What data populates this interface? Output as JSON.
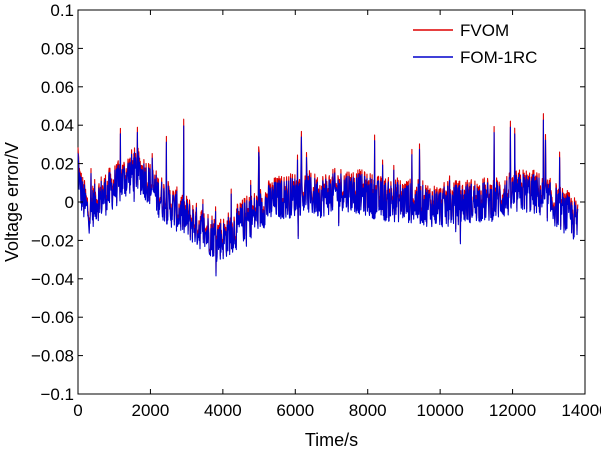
{
  "chart_data": {
    "type": "line",
    "title": "",
    "xlabel": "Time/s",
    "ylabel": "Voltage error/V",
    "xlim": [
      0,
      14000
    ],
    "ylim": [
      -0.1,
      0.1
    ],
    "xticks": [
      0,
      2000,
      4000,
      6000,
      8000,
      10000,
      12000,
      14000
    ],
    "xtick_labels": [
      "0",
      "2000",
      "4000",
      "6000",
      "8000",
      "10000",
      "12000",
      "14000"
    ],
    "yticks": [
      0.1,
      0.08,
      0.06,
      0.04,
      0.02,
      0,
      -0.02,
      -0.04,
      -0.06,
      -0.08,
      -0.1
    ],
    "ytick_labels": [
      "0.1",
      "0.08",
      "0.06",
      "0.04",
      "0.02",
      "0",
      "−0.02",
      "−0.04",
      "−0.06",
      "−0.08",
      "−0.1"
    ],
    "grid": false,
    "legend": "top-right",
    "series": [
      {
        "name": "FVOM",
        "color": "#dd0000",
        "x": [
          0,
          50,
          150,
          300,
          500,
          800,
          1000,
          1200,
          1400,
          1600,
          1800,
          2000,
          2200,
          2500,
          2800,
          3000,
          3200,
          3500,
          3800,
          4000,
          4200,
          4400,
          4600,
          4800,
          5000,
          5200,
          5500,
          5800,
          6000,
          6300,
          6600,
          7000,
          7300,
          7600,
          8000,
          8300,
          8600,
          9000,
          9300,
          9600,
          10000,
          10300,
          10600,
          11000,
          11300,
          11600,
          12000,
          12300,
          12600,
          13000,
          13300,
          13600,
          13800
        ],
        "y": [
          0.025,
          0.01,
          0.002,
          -0.004,
          0.002,
          0.006,
          0.009,
          0.012,
          0.016,
          0.018,
          0.015,
          0.01,
          0.005,
          0.0,
          -0.004,
          -0.007,
          -0.01,
          -0.014,
          -0.017,
          -0.018,
          -0.015,
          -0.012,
          -0.008,
          -0.006,
          -0.003,
          0.0,
          0.003,
          0.004,
          0.005,
          0.006,
          0.004,
          0.006,
          0.008,
          0.007,
          0.005,
          0.003,
          0.002,
          0.002,
          0.001,
          0.0,
          -0.001,
          0.0,
          0.001,
          0.002,
          0.002,
          0.003,
          0.005,
          0.007,
          0.006,
          0.002,
          -0.002,
          -0.006,
          -0.01
        ]
      },
      {
        "name": "FOM-1RC",
        "color": "#0000cc",
        "x": [
          0,
          50,
          150,
          300,
          500,
          800,
          1000,
          1200,
          1400,
          1600,
          1800,
          2000,
          2200,
          2500,
          2800,
          3000,
          3200,
          3500,
          3800,
          4000,
          4200,
          4400,
          4600,
          4800,
          5000,
          5200,
          5500,
          5800,
          6000,
          6300,
          6600,
          7000,
          7300,
          7600,
          8000,
          8300,
          8600,
          9000,
          9300,
          9600,
          10000,
          10300,
          10600,
          11000,
          11300,
          11600,
          12000,
          12300,
          12600,
          13000,
          13300,
          13600,
          13800
        ],
        "y": [
          0.022,
          0.008,
          0.0,
          -0.006,
          0.0,
          0.004,
          0.007,
          0.01,
          0.014,
          0.016,
          0.013,
          0.008,
          0.003,
          -0.002,
          -0.006,
          -0.009,
          -0.012,
          -0.016,
          -0.019,
          -0.02,
          -0.017,
          -0.014,
          -0.01,
          -0.008,
          -0.005,
          -0.002,
          0.001,
          0.002,
          0.003,
          0.004,
          0.002,
          0.004,
          0.006,
          0.005,
          0.003,
          0.001,
          0.0,
          0.0,
          -0.001,
          -0.002,
          -0.003,
          -0.002,
          -0.001,
          0.0,
          0.0,
          0.001,
          0.003,
          0.005,
          0.004,
          0.0,
          -0.004,
          -0.008,
          -0.012
        ]
      }
    ]
  }
}
